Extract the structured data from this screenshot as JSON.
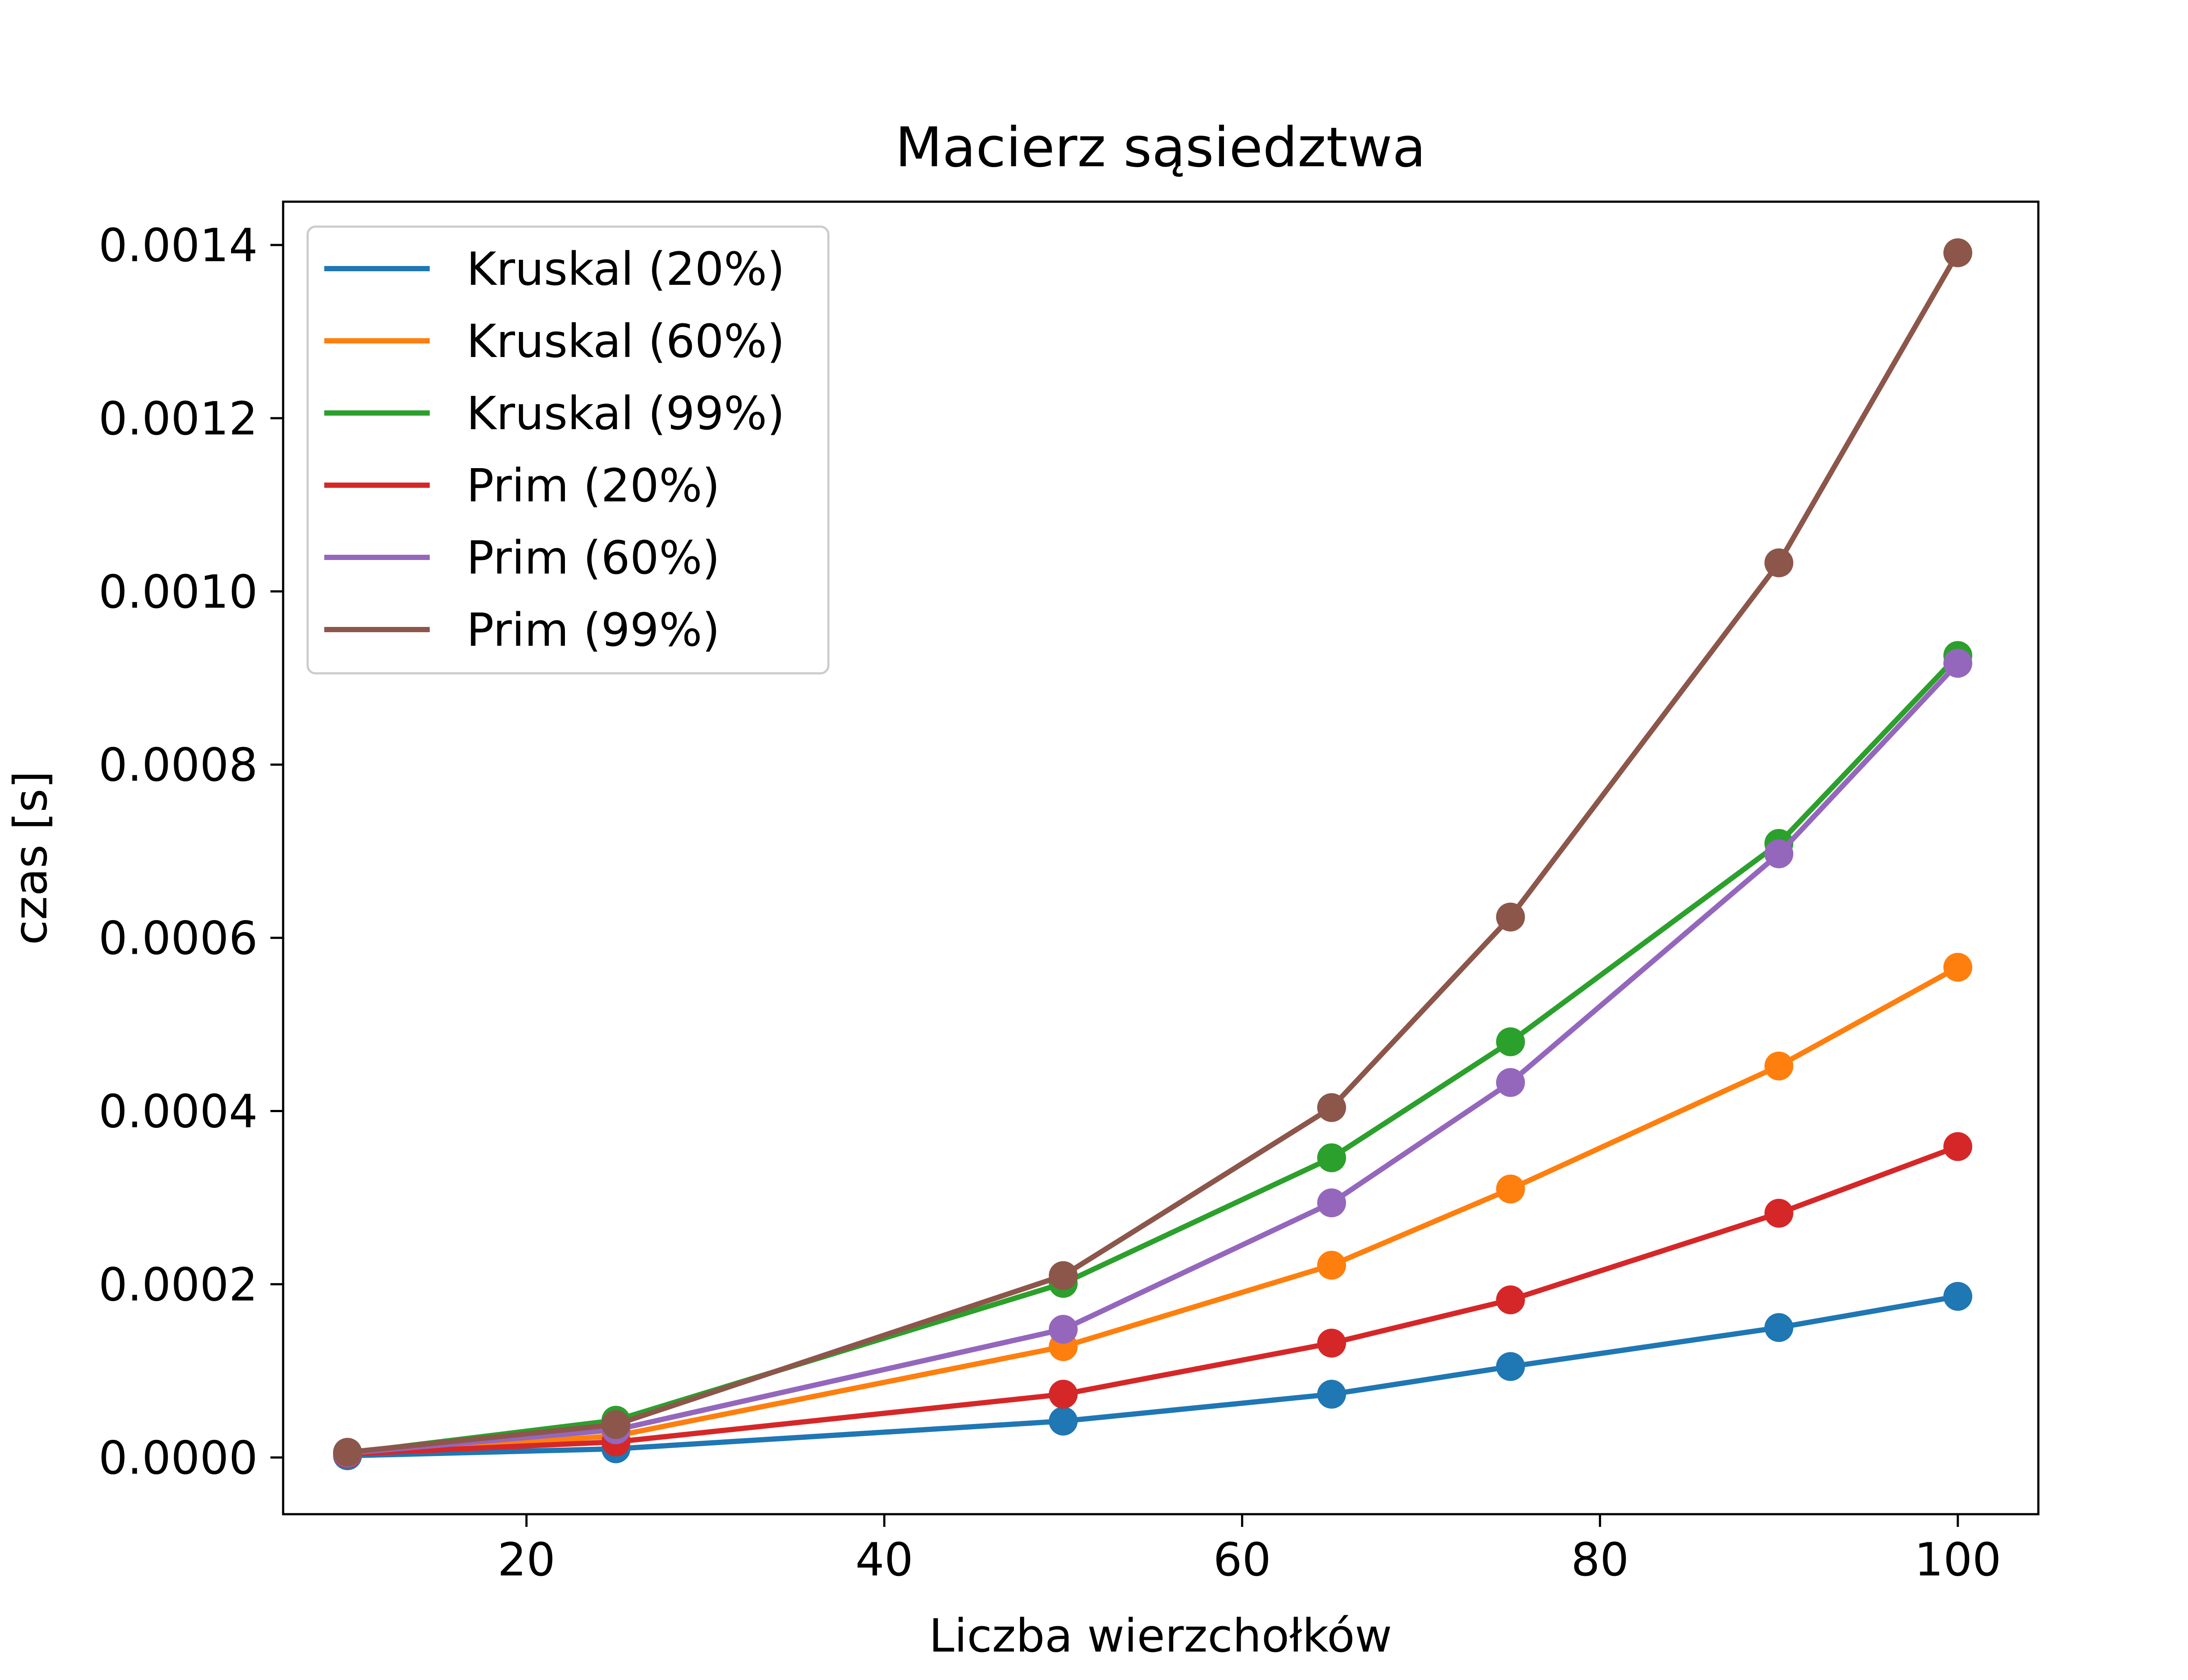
{
  "chart_data": {
    "type": "line",
    "title": "Macierz sąsiedztwa",
    "xlabel": "Liczba wierzchołków",
    "ylabel": "czas [s]",
    "x": [
      10,
      25,
      50,
      65,
      75,
      90,
      100
    ],
    "xlim": [
      6.4,
      104.5
    ],
    "ylim": [
      -6.55e-05,
      0.00145
    ],
    "xticks": [
      20,
      40,
      60,
      80,
      100
    ],
    "xtick_labels": [
      "20",
      "40",
      "60",
      "80",
      "100"
    ],
    "yticks": [
      0,
      0.0002,
      0.0004,
      0.0006,
      0.0008,
      0.001,
      0.0012,
      0.0014
    ],
    "ytick_labels": [
      "0.0000",
      "0.0002",
      "0.0004",
      "0.0006",
      "0.0008",
      "0.0010",
      "0.0012",
      "0.0014"
    ],
    "grid": false,
    "legend_position": "top-left",
    "markers": "circle",
    "series": [
      {
        "name": "Kruskal (20%)",
        "color": "#1f77b4",
        "values": [
          2e-06,
          1e-05,
          4.2e-05,
          7.3e-05,
          0.000105,
          0.00015,
          0.000186
        ]
      },
      {
        "name": "Kruskal (60%)",
        "color": "#ff7f0e",
        "values": [
          4e-06,
          2.5e-05,
          0.000128,
          0.000222,
          0.00031,
          0.000452,
          0.000566
        ]
      },
      {
        "name": "Kruskal (99%)",
        "color": "#2ca02c",
        "values": [
          5e-06,
          4.3e-05,
          0.000201,
          0.000346,
          0.00048,
          0.000709,
          0.000926
        ]
      },
      {
        "name": "Prim (20%)",
        "color": "#d62728",
        "values": [
          4e-06,
          1.8e-05,
          7.3e-05,
          0.000132,
          0.000182,
          0.000282,
          0.000359
        ]
      },
      {
        "name": "Prim (60%)",
        "color": "#9467bd",
        "values": [
          5e-06,
          3.2e-05,
          0.000148,
          0.000294,
          0.000433,
          0.000697,
          0.000917
        ]
      },
      {
        "name": "Prim (99%)",
        "color": "#8c564b",
        "values": [
          6e-06,
          3.8e-05,
          0.00021,
          0.000404,
          0.000624,
          0.001033,
          0.001391
        ]
      }
    ]
  }
}
